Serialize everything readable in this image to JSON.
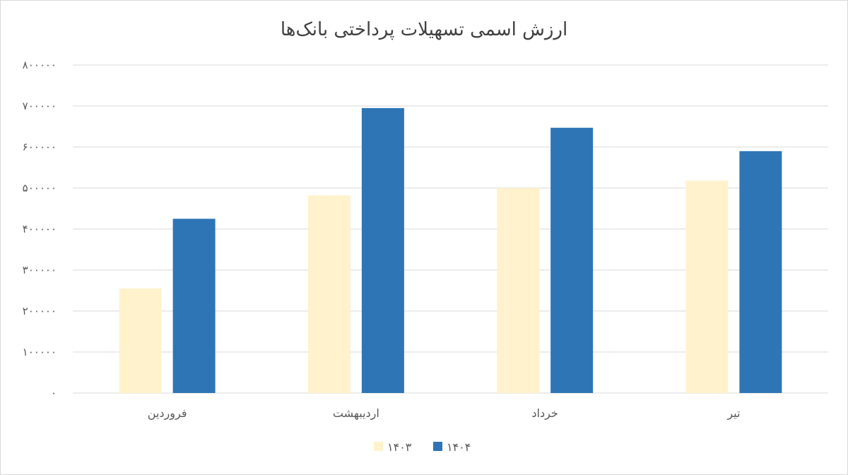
{
  "chart_data": {
    "type": "bar",
    "title": "ارزش اسمی تسهیلات پرداختی بانک‌ها",
    "categories": [
      "فروردین",
      "اردیبهشت",
      "خرداد",
      "تیر"
    ],
    "series": [
      {
        "name": "۱۴۰۳",
        "color": "#fff2cc",
        "values": [
          255000,
          482000,
          500000,
          518000
        ]
      },
      {
        "name": "۱۴۰۴",
        "color": "#2e75b6",
        "values": [
          425000,
          695000,
          647000,
          590000
        ]
      }
    ],
    "y_ticks": [
      "۰",
      "۱۰۰۰۰۰",
      "۲۰۰۰۰۰",
      "۳۰۰۰۰۰",
      "۴۰۰۰۰۰",
      "۵۰۰۰۰۰",
      "۶۰۰۰۰۰",
      "۷۰۰۰۰۰",
      "۸۰۰۰۰۰"
    ],
    "ylim": [
      0,
      800000
    ],
    "grid": true,
    "legend": "bottom"
  }
}
